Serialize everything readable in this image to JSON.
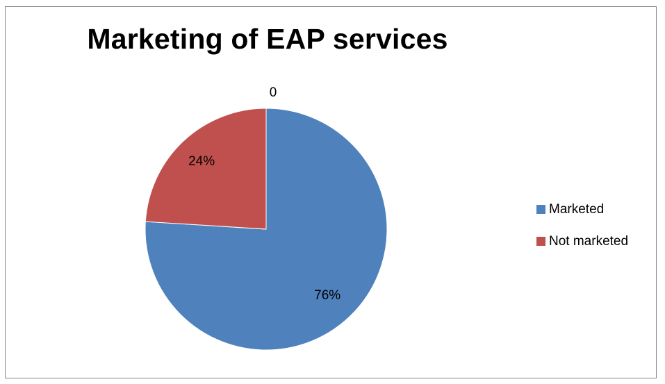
{
  "chart_data": {
    "type": "pie",
    "title": "Marketing of EAP services",
    "categories": [
      "Marketed",
      "Not marketed"
    ],
    "values": [
      76,
      24
    ],
    "data_labels": [
      "76%",
      "24%"
    ],
    "extra_label": "0",
    "colors": [
      "#4F81BD",
      "#C0504D"
    ],
    "legend_position": "right"
  }
}
